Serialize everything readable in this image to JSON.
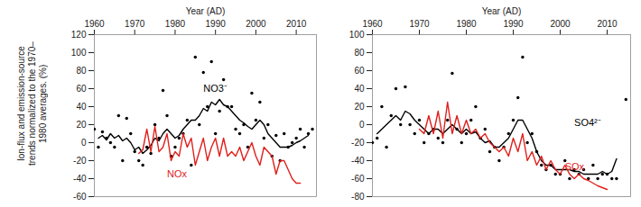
{
  "chart_data": [
    {
      "type": "line",
      "xlabel": "Year (AD)",
      "ylabel": "Ion-flux and emission-source trends normalized to the 1970–1980 averages. (%)",
      "x": [
        1960,
        1961,
        1962,
        1963,
        1964,
        1965,
        1966,
        1967,
        1968,
        1969,
        1970,
        1971,
        1972,
        1973,
        1974,
        1975,
        1976,
        1977,
        1978,
        1979,
        1980,
        1981,
        1982,
        1983,
        1984,
        1985,
        1986,
        1987,
        1988,
        1989,
        1990,
        1991,
        1992,
        1993,
        1994,
        1995,
        1996,
        1997,
        1998,
        1999,
        2000,
        2001,
        2002,
        2003,
        2004,
        2005,
        2006,
        2007,
        2008,
        2009,
        2010,
        2011,
        2012,
        2013,
        2014
      ],
      "xlim": [
        1960,
        2015
      ],
      "xticks": [
        1960,
        1970,
        1980,
        1990,
        2000,
        2010
      ],
      "ylim": [
        -60,
        120
      ],
      "yticks": [
        -60,
        -40,
        -20,
        0,
        20,
        40,
        60,
        80,
        100,
        120
      ],
      "series": [
        {
          "name": "NO3⁻",
          "type": "scatter",
          "color": "#000000",
          "values": [
            15,
            -5,
            12,
            5,
            0,
            -5,
            30,
            -20,
            27,
            10,
            -10,
            -20,
            -25,
            -5,
            -12,
            20,
            5,
            58,
            30,
            -15,
            -5,
            5,
            10,
            25,
            -25,
            95,
            20,
            78,
            40,
            90,
            10,
            35,
            70,
            40,
            40,
            15,
            10,
            20,
            -5,
            55,
            25,
            45,
            5,
            20,
            -15,
            8,
            -20,
            10,
            -5,
            0,
            5,
            15,
            -5,
            10,
            15
          ]
        },
        {
          "name": "NO3⁻",
          "type": "line",
          "color": "#000000",
          "label": {
            "x": 1987,
            "y": 60
          },
          "values": [
            null,
            5,
            8,
            3,
            10,
            5,
            8,
            2,
            5,
            0,
            -8,
            -5,
            -12,
            -8,
            -3,
            5,
            2,
            10,
            15,
            10,
            5,
            8,
            15,
            20,
            25,
            25,
            30,
            38,
            35,
            45,
            42,
            48,
            42,
            40,
            35,
            30,
            25,
            22,
            18,
            15,
            20,
            25,
            20,
            10,
            5,
            0,
            -5,
            -5,
            -5,
            -3,
            0,
            2,
            5,
            8,
            null
          ]
        },
        {
          "name": "NOx",
          "type": "line",
          "color": "#e0201c",
          "label": {
            "x": 1978,
            "y": -35
          },
          "values": [
            null,
            null,
            null,
            null,
            null,
            null,
            null,
            null,
            null,
            null,
            null,
            -12,
            -8,
            15,
            -10,
            18,
            -10,
            -5,
            10,
            -20,
            -10,
            -15,
            10,
            -5,
            5,
            -25,
            -10,
            5,
            -20,
            -5,
            5,
            -15,
            5,
            -15,
            -10,
            -15,
            -5,
            -20,
            -10,
            0,
            -15,
            -25,
            -5,
            -10,
            -15,
            -35,
            -20,
            -20,
            -30,
            -40,
            -45,
            -45,
            null,
            null,
            null
          ]
        }
      ]
    },
    {
      "type": "line",
      "xlabel": "Year (AD)",
      "x": [
        1960,
        1961,
        1962,
        1963,
        1964,
        1965,
        1966,
        1967,
        1968,
        1969,
        1970,
        1971,
        1972,
        1973,
        1974,
        1975,
        1976,
        1977,
        1978,
        1979,
        1980,
        1981,
        1982,
        1983,
        1984,
        1985,
        1986,
        1987,
        1988,
        1989,
        1990,
        1991,
        1992,
        1993,
        1994,
        1995,
        1996,
        1997,
        1998,
        1999,
        2000,
        2001,
        2002,
        2003,
        2004,
        2005,
        2006,
        2007,
        2008,
        2009,
        2010,
        2011,
        2012,
        2013,
        2014
      ],
      "xlim": [
        1960,
        2015
      ],
      "xticks": [
        1960,
        1970,
        1980,
        1990,
        2000,
        2010
      ],
      "ylim": [
        -80,
        100
      ],
      "yticks": [
        -80,
        -60,
        -40,
        -20,
        0,
        20,
        40,
        60,
        80,
        100
      ],
      "series": [
        {
          "name": "SO4²⁻",
          "type": "scatter",
          "color": "#000000",
          "values": [
            -20,
            -15,
            20,
            -25,
            10,
            40,
            0,
            42,
            0,
            -10,
            5,
            -20,
            -10,
            -5,
            -15,
            -20,
            5,
            57,
            -5,
            -20,
            -10,
            5,
            20,
            -15,
            -5,
            -30,
            -25,
            -40,
            -25,
            -10,
            5,
            30,
            75,
            -20,
            -10,
            -30,
            -45,
            -50,
            -45,
            -55,
            -55,
            -40,
            -60,
            -50,
            -55,
            -50,
            -60,
            -45,
            -60,
            -55,
            -55,
            -60,
            -60,
            null,
            28
          ]
        },
        {
          "name": "SO4²⁻",
          "type": "line",
          "color": "#000000",
          "label": {
            "x": 2003,
            "y": 2
          },
          "values": [
            null,
            -10,
            -5,
            0,
            5,
            10,
            5,
            15,
            12,
            5,
            0,
            -5,
            -10,
            -5,
            -5,
            -10,
            -5,
            0,
            -5,
            -10,
            -5,
            -10,
            -8,
            -15,
            -20,
            -18,
            -25,
            -25,
            -20,
            -15,
            -5,
            5,
            5,
            -5,
            -15,
            -30,
            -40,
            -45,
            -45,
            -50,
            -50,
            -50,
            -50,
            -52,
            -52,
            -55,
            -55,
            -55,
            -55,
            -52,
            -55,
            -52,
            -38,
            null,
            null
          ]
        },
        {
          "name": "SOx",
          "type": "line",
          "color": "#e0201c",
          "label": {
            "x": 2001,
            "y": -47
          },
          "values": [
            null,
            null,
            null,
            null,
            null,
            null,
            null,
            null,
            null,
            null,
            -5,
            -10,
            10,
            -10,
            15,
            -15,
            25,
            -10,
            10,
            -10,
            5,
            -10,
            -5,
            -15,
            -10,
            -20,
            -25,
            -30,
            -25,
            -35,
            -15,
            -30,
            -10,
            -40,
            -30,
            -45,
            -35,
            -50,
            -40,
            -50,
            -55,
            -45,
            -55,
            -60,
            -55,
            -60,
            -62,
            -65,
            -68,
            -70,
            -72,
            null,
            null,
            null,
            null
          ]
        }
      ]
    }
  ]
}
